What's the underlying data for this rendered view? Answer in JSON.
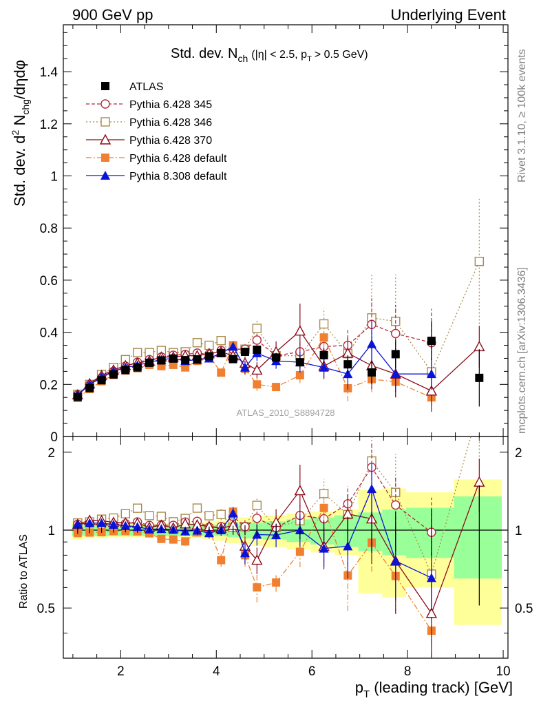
{
  "header": {
    "left_label": "900 GeV pp",
    "right_label": "Underlying Event"
  },
  "side_labels": {
    "rivet": "Rivet 3.1.10, ≥ 100k events",
    "mcplots": "mcplots.cern.ch [arXiv:1306.3436]"
  },
  "analysis_label": "ATLAS_2010_S8894728",
  "colors": {
    "atlas": "#000000",
    "p345": "#b22a3e",
    "p346": "#a88a4a",
    "p370": "#8b0a1a",
    "pdef": "#f08030",
    "p8": "#0a14d8",
    "band_inner": "#99ff99",
    "band_outer": "#ffff99"
  },
  "chart_data": {
    "type": "scatter",
    "title_parts": {
      "main": "Std. dev. N",
      "sub": "ch",
      "cuts": "(|η| < 2.5, p",
      "cuts_sub": "T",
      "cuts_end": "> 0.5 GeV)"
    },
    "xlabel": {
      "main": "p",
      "sub": "T",
      "rest": " (leading track) [GeV]"
    },
    "ylabel_top": {
      "a": "Std. dev. d",
      "sup": "2",
      "b": " N",
      "sub": "chg",
      "c": "/dηdφ"
    },
    "ylabel_bottom": "Ratio to ATLAS",
    "xlim": [
      0.8,
      10.1
    ],
    "ylim_top": [
      0,
      1.58
    ],
    "ylim_bottom": [
      0.32,
      2.3
    ],
    "x_ticks": [
      "2",
      "4",
      "6",
      "8",
      "10"
    ],
    "y_ticks_top": [
      "0",
      "0.2",
      "0.4",
      "0.6",
      "0.8",
      "1",
      "1.2",
      "1.4"
    ],
    "y_ticks_bottom": [
      "0.5",
      "1",
      "2"
    ],
    "legend_position": "top-left",
    "series": [
      {
        "key": "atlas",
        "name": "ATLAS",
        "marker": "square-filled",
        "x": [
          1.1,
          1.35,
          1.6,
          1.85,
          2.1,
          2.35,
          2.6,
          2.85,
          3.1,
          3.35,
          3.6,
          3.85,
          4.1,
          4.35,
          4.6,
          4.85,
          5.25,
          5.75,
          6.25,
          6.75,
          7.25,
          7.75,
          8.5,
          9.5
        ],
        "y": [
          0.152,
          0.186,
          0.216,
          0.238,
          0.255,
          0.265,
          0.283,
          0.292,
          0.299,
          0.293,
          0.296,
          0.308,
          0.32,
          0.297,
          0.325,
          0.333,
          0.303,
          0.285,
          0.312,
          0.277,
          0.246,
          0.316,
          0.367,
          0.225
        ],
        "yerr": [
          0.005,
          0.005,
          0.005,
          0.005,
          0.005,
          0.006,
          0.006,
          0.007,
          0.008,
          0.008,
          0.009,
          0.01,
          0.011,
          0.012,
          0.014,
          0.016,
          0.018,
          0.022,
          0.028,
          0.035,
          0.045,
          0.055,
          0.075,
          0.11
        ]
      },
      {
        "key": "p345",
        "name": "Pythia 6.428 345",
        "marker": "circle-open",
        "dash": "5,3",
        "x": [
          1.1,
          1.35,
          1.6,
          1.85,
          2.1,
          2.35,
          2.6,
          2.85,
          3.1,
          3.35,
          3.6,
          3.85,
          4.1,
          4.35,
          4.6,
          4.85,
          5.25,
          5.75,
          6.25,
          6.75,
          7.25,
          7.75,
          8.5
        ],
        "y": [
          0.16,
          0.198,
          0.225,
          0.25,
          0.27,
          0.285,
          0.295,
          0.305,
          0.312,
          0.315,
          0.32,
          0.316,
          0.33,
          0.335,
          0.335,
          0.37,
          0.31,
          0.325,
          0.345,
          0.35,
          0.43,
          0.395,
          0.36
        ],
        "yerr": [
          0.004,
          0.004,
          0.004,
          0.004,
          0.005,
          0.006,
          0.007,
          0.008,
          0.009,
          0.01,
          0.011,
          0.012,
          0.014,
          0.016,
          0.02,
          0.025,
          0.03,
          0.04,
          0.05,
          0.06,
          0.1,
          0.11,
          0.13
        ]
      },
      {
        "key": "p346",
        "name": "Pythia 6.428 346",
        "marker": "square-open",
        "dash": "2,3",
        "x": [
          1.1,
          1.35,
          1.6,
          1.85,
          2.1,
          2.35,
          2.6,
          2.85,
          3.1,
          3.35,
          3.6,
          3.85,
          4.1,
          4.35,
          4.6,
          4.85,
          5.25,
          5.75,
          6.25,
          6.75,
          7.25,
          7.75,
          8.5,
          9.5
        ],
        "y": [
          0.162,
          0.2,
          0.238,
          0.265,
          0.295,
          0.322,
          0.322,
          0.33,
          0.322,
          0.325,
          0.36,
          0.35,
          0.368,
          0.305,
          0.335,
          0.415,
          0.31,
          0.31,
          0.432,
          0.318,
          0.455,
          0.442,
          0.248,
          0.672
        ],
        "yerr": [
          0.004,
          0.004,
          0.005,
          0.005,
          0.006,
          0.007,
          0.008,
          0.009,
          0.01,
          0.011,
          0.013,
          0.015,
          0.018,
          0.02,
          0.025,
          0.03,
          0.035,
          0.05,
          0.06,
          0.08,
          0.17,
          0.18,
          0.11,
          0.24
        ]
      },
      {
        "key": "p370",
        "name": "Pythia 6.428 370",
        "marker": "triangle-open",
        "dash": "",
        "x": [
          1.1,
          1.35,
          1.6,
          1.85,
          2.1,
          2.35,
          2.6,
          2.85,
          3.1,
          3.35,
          3.6,
          3.85,
          4.1,
          4.35,
          4.6,
          4.85,
          5.25,
          5.75,
          6.25,
          6.75,
          7.25,
          7.75,
          8.5,
          9.5
        ],
        "y": [
          0.16,
          0.203,
          0.235,
          0.255,
          0.272,
          0.282,
          0.29,
          0.305,
          0.305,
          0.31,
          0.31,
          0.318,
          0.325,
          0.31,
          0.282,
          0.255,
          0.325,
          0.405,
          0.27,
          0.32,
          0.272,
          0.24,
          0.175,
          0.345
        ],
        "yerr": [
          0.004,
          0.004,
          0.005,
          0.005,
          0.006,
          0.007,
          0.008,
          0.009,
          0.01,
          0.011,
          0.012,
          0.014,
          0.016,
          0.02,
          0.025,
          0.03,
          0.04,
          0.105,
          0.05,
          0.06,
          0.09,
          0.09,
          0.08,
          0.08
        ]
      },
      {
        "key": "pdef",
        "name": "Pythia 6.428 default",
        "marker": "square-filled",
        "dash": "8,3,2,3",
        "x": [
          1.1,
          1.35,
          1.6,
          1.85,
          2.1,
          2.35,
          2.6,
          2.85,
          3.1,
          3.35,
          3.6,
          3.85,
          4.1,
          4.35,
          4.6,
          4.85,
          5.25,
          5.75,
          6.25,
          6.75,
          7.25,
          7.75,
          8.5
        ],
        "y": [
          0.148,
          0.182,
          0.212,
          0.236,
          0.253,
          0.262,
          0.275,
          0.27,
          0.275,
          0.265,
          0.29,
          0.31,
          0.245,
          0.35,
          0.26,
          0.2,
          0.19,
          0.235,
          0.38,
          0.185,
          0.22,
          0.21,
          0.15
        ],
        "yerr": [
          0.004,
          0.004,
          0.004,
          0.005,
          0.006,
          0.006,
          0.007,
          0.008,
          0.009,
          0.01,
          0.011,
          0.012,
          0.014,
          0.016,
          0.025,
          0.025,
          0.015,
          0.03,
          0.04,
          0.05,
          0.05,
          0.06,
          0.03
        ]
      },
      {
        "key": "p8",
        "name": "Pythia 8.308 default",
        "marker": "triangle-filled",
        "dash": "",
        "x": [
          1.1,
          1.35,
          1.6,
          1.85,
          2.1,
          2.35,
          2.6,
          2.85,
          3.1,
          3.35,
          3.6,
          3.85,
          4.1,
          4.35,
          4.6,
          4.85,
          5.25,
          5.75,
          6.25,
          6.75,
          7.25,
          7.75,
          8.5
        ],
        "y": [
          0.16,
          0.198,
          0.23,
          0.25,
          0.265,
          0.273,
          0.285,
          0.295,
          0.3,
          0.29,
          0.295,
          0.3,
          0.32,
          0.345,
          0.265,
          0.32,
          0.29,
          0.285,
          0.265,
          0.24,
          0.355,
          0.24,
          0.24
        ],
        "yerr": [
          0.004,
          0.004,
          0.005,
          0.005,
          0.006,
          0.007,
          0.008,
          0.009,
          0.01,
          0.011,
          0.012,
          0.014,
          0.016,
          0.02,
          0.025,
          0.03,
          0.03,
          0.04,
          0.04,
          0.06,
          0.09,
          0.07,
          0.06
        ]
      }
    ],
    "band_bins": [
      [
        0.98,
        1.22,
        0.05,
        0.08
      ],
      [
        1.22,
        1.47,
        0.05,
        0.07
      ],
      [
        1.47,
        1.72,
        0.05,
        0.07
      ],
      [
        1.72,
        1.97,
        0.05,
        0.06
      ],
      [
        1.97,
        2.22,
        0.05,
        0.06
      ],
      [
        2.22,
        2.47,
        0.05,
        0.06
      ],
      [
        2.47,
        2.72,
        0.05,
        0.06
      ],
      [
        2.72,
        2.97,
        0.05,
        0.06
      ],
      [
        2.97,
        3.22,
        0.05,
        0.06
      ],
      [
        3.22,
        3.47,
        0.05,
        0.07
      ],
      [
        3.47,
        3.72,
        0.05,
        0.07
      ],
      [
        3.72,
        3.97,
        0.05,
        0.08
      ],
      [
        3.97,
        4.22,
        0.05,
        0.09
      ],
      [
        4.22,
        4.47,
        0.06,
        0.11
      ],
      [
        4.47,
        4.72,
        0.07,
        0.12
      ],
      [
        4.72,
        4.97,
        0.07,
        0.13
      ],
      [
        4.97,
        5.47,
        0.08,
        0.14
      ],
      [
        5.47,
        5.97,
        0.1,
        0.16
      ],
      [
        5.97,
        6.47,
        0.12,
        0.18
      ],
      [
        6.47,
        6.97,
        0.14,
        0.2
      ],
      [
        6.97,
        7.47,
        0.17,
        0.43
      ],
      [
        7.47,
        7.97,
        0.2,
        0.45
      ],
      [
        7.97,
        8.97,
        0.22,
        0.4
      ],
      [
        8.97,
        9.97,
        0.35,
        0.57
      ]
    ]
  }
}
